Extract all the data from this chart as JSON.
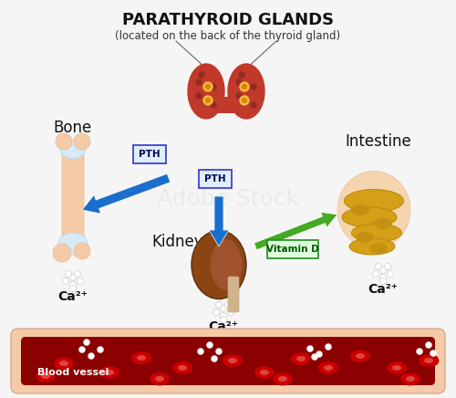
{
  "title": "PARATHYROID GLANDS",
  "subtitle": "(located on the back of the thyroid gland)",
  "background_color": "#f5f5f5",
  "labels": {
    "bone": "Bone",
    "intestine": "Intestine",
    "kidney": "Kidney",
    "blood_vessel": "Blood vessel",
    "ca_bone": "Ca²⁺",
    "ca_kidney": "Ca²⁺",
    "ca_intestine": "Ca²⁺",
    "pth_bone": "PTH",
    "pth_kidney": "PTH",
    "vitamin_d": "Vitamin D"
  },
  "colors": {
    "arrow_blue": "#1a6fcc",
    "arrow_green": "#44aa22",
    "pth_box_bg": "#e8e8ff",
    "pth_box_border": "#3333cc",
    "vitd_box_bg": "#ddffdd",
    "vitd_box_border": "#228822",
    "bone_main": "#f5cba7",
    "bone_end": "#aed6f1",
    "thyroid_main": "#c0392b",
    "kidney_main": "#784212",
    "blood_vessel_outer": "#f5cba7",
    "blood_vessel_inner": "#8b0000",
    "rbc_color": "#cc0000",
    "white_particle": "#ffffff",
    "intestine_outer": "#f0d9b5",
    "intestine_inner": "#d4a017"
  }
}
